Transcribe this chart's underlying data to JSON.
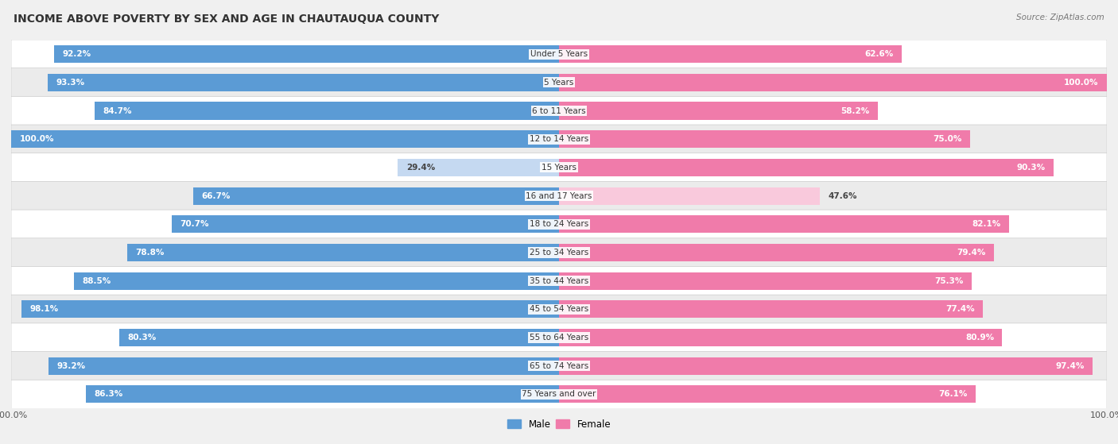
{
  "title": "INCOME ABOVE POVERTY BY SEX AND AGE IN CHAUTAUQUA COUNTY",
  "source": "Source: ZipAtlas.com",
  "categories": [
    "Under 5 Years",
    "5 Years",
    "6 to 11 Years",
    "12 to 14 Years",
    "15 Years",
    "16 and 17 Years",
    "18 to 24 Years",
    "25 to 34 Years",
    "35 to 44 Years",
    "45 to 54 Years",
    "55 to 64 Years",
    "65 to 74 Years",
    "75 Years and over"
  ],
  "male_values": [
    92.2,
    93.3,
    84.7,
    100.0,
    29.4,
    66.7,
    70.7,
    78.8,
    88.5,
    98.1,
    80.3,
    93.2,
    86.3
  ],
  "female_values": [
    62.6,
    100.0,
    58.2,
    75.0,
    90.3,
    47.6,
    82.1,
    79.4,
    75.3,
    77.4,
    80.9,
    97.4,
    76.1
  ],
  "male_color": "#5b9bd5",
  "female_color": "#f07baa",
  "male_light_color": "#c5d9f1",
  "female_light_color": "#f9c9dc",
  "background_color": "#f0f0f0",
  "row_bg_light": "#ffffff",
  "row_bg_dark": "#ebebeb",
  "title_fontsize": 10,
  "source_fontsize": 7.5,
  "label_fontsize": 7.5,
  "tick_fontsize": 8,
  "value_threshold": 50
}
